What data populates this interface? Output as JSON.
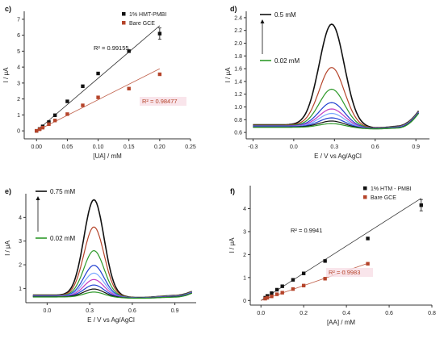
{
  "colors": {
    "black": "#111111",
    "red": "#b5442a",
    "green": "#2e9a2a",
    "blue": "#1f3fd0",
    "magenta": "#c23ec2",
    "lightblue": "#7aa8ff",
    "axis": "#333333",
    "highlight": "#f7dfe6"
  },
  "chart_data": [
    {
      "panel_label": "c)",
      "type": "scatter",
      "xlabel": "[UA] / mM",
      "ylabel": "I / μA",
      "xlim": [
        -0.02,
        0.25
      ],
      "ylim": [
        -0.5,
        7.5
      ],
      "xticks": [
        "0.00",
        "0.05",
        "0.10",
        "0.15",
        "0.20",
        "0.25"
      ],
      "xtick_values": [
        0.0,
        0.05,
        0.1,
        0.15,
        0.2,
        0.25
      ],
      "yticks": [
        "0",
        "1",
        "2",
        "3",
        "4",
        "5",
        "6",
        "7"
      ],
      "ytick_values": [
        0,
        1,
        2,
        3,
        4,
        5,
        6,
        7
      ],
      "legend_position": "top-right",
      "series": [
        {
          "name": "1% HMT-PMBI",
          "marker": "square",
          "color": "#111111",
          "x": [
            0.0,
            0.005,
            0.01,
            0.02,
            0.03,
            0.05,
            0.075,
            0.1,
            0.15,
            0.2
          ],
          "y": [
            0.0,
            0.12,
            0.28,
            0.55,
            0.98,
            1.85,
            2.8,
            3.6,
            5.0,
            6.1
          ],
          "fit": [
            [
              0.0,
              0.0
            ],
            [
              0.2,
              6.6
            ]
          ],
          "annotation": "R² = 0.99155"
        },
        {
          "name": "Bare GCE",
          "marker": "square",
          "color": "#b5442a",
          "x": [
            0.0,
            0.005,
            0.01,
            0.02,
            0.03,
            0.05,
            0.075,
            0.1,
            0.15,
            0.2
          ],
          "y": [
            0.0,
            0.1,
            0.2,
            0.42,
            0.65,
            1.05,
            1.6,
            2.1,
            2.65,
            3.55
          ],
          "fit": [
            [
              0.0,
              0.0
            ],
            [
              0.2,
              3.9
            ]
          ],
          "annotation": "R² = 0.98477"
        }
      ]
    },
    {
      "panel_label": "d)",
      "type": "line",
      "xlabel": "E / V vs Ag/AgCl",
      "ylabel": "I / μA",
      "xlim": [
        -0.35,
        1.0
      ],
      "ylim": [
        0.5,
        2.5
      ],
      "xticks": [
        "-0.3",
        "0.0",
        "0.3",
        "0.6",
        "0.9"
      ],
      "xtick_values": [
        -0.3,
        0.0,
        0.3,
        0.6,
        0.9
      ],
      "yticks": [
        "0.6",
        "0.8",
        "1.0",
        "1.2",
        "1.4",
        "1.6",
        "1.8",
        "2.0",
        "2.2",
        "2.4"
      ],
      "ytick_values": [
        0.6,
        0.8,
        1.0,
        1.2,
        1.4,
        1.6,
        1.8,
        2.0,
        2.2,
        2.4
      ],
      "annotations": {
        "top": "0.5 mM",
        "bottom": "0.02 mM"
      },
      "peak_position": 0.28,
      "series": [
        {
          "color": "#111111",
          "peak": 2.3
        },
        {
          "color": "#b5442a",
          "peak": 1.62
        },
        {
          "color": "#2e9a2a",
          "peak": 1.28
        },
        {
          "color": "#1f3fd0",
          "peak": 1.07
        },
        {
          "color": "#c23ec2",
          "peak": 0.97
        },
        {
          "color": "#7aa8ff",
          "peak": 0.9
        },
        {
          "color": "#1f3fd0",
          "peak": 0.83
        },
        {
          "color": "#111111",
          "peak": 0.78
        },
        {
          "color": "#2e9a2a",
          "peak": 0.74
        }
      ]
    },
    {
      "panel_label": "e)",
      "type": "line",
      "xlabel": "E / V vs Ag/AgCl",
      "ylabel": "I / μA",
      "xlim": [
        -0.15,
        1.05
      ],
      "ylim": [
        0.4,
        5.0
      ],
      "xticks": [
        "0.0",
        "0.3",
        "0.6",
        "0.9"
      ],
      "xtick_values": [
        0.0,
        0.3,
        0.6,
        0.9
      ],
      "yticks": [
        "1",
        "2",
        "3",
        "4"
      ],
      "ytick_values": [
        1,
        2,
        3,
        4
      ],
      "annotations": {
        "top": "0.75 mM",
        "bottom": "0.02 mM"
      },
      "peak_position": 0.33,
      "series": [
        {
          "color": "#111111",
          "peak": 4.75
        },
        {
          "color": "#b5442a",
          "peak": 3.6
        },
        {
          "color": "#2e9a2a",
          "peak": 2.6
        },
        {
          "color": "#1f3fd0",
          "peak": 1.98
        },
        {
          "color": "#7aa8ff",
          "peak": 1.65
        },
        {
          "color": "#c23ec2",
          "peak": 1.38
        },
        {
          "color": "#1f3fd0",
          "peak": 1.15
        },
        {
          "color": "#111111",
          "peak": 0.98
        },
        {
          "color": "#2e9a2a",
          "peak": 0.85
        }
      ]
    },
    {
      "panel_label": "f)",
      "type": "scatter",
      "xlabel": "[AA] / mM",
      "ylabel": "I / μA",
      "xlim": [
        -0.05,
        0.8
      ],
      "ylim": [
        -0.2,
        5.0
      ],
      "xticks": [
        "0.0",
        "0.2",
        "0.4",
        "0.6",
        "0.8"
      ],
      "xtick_values": [
        0.0,
        0.2,
        0.4,
        0.6,
        0.8
      ],
      "yticks": [
        "0",
        "1",
        "2",
        "3",
        "4"
      ],
      "ytick_values": [
        0,
        1,
        2,
        3,
        4
      ],
      "legend_position": "top-right",
      "series": [
        {
          "name": "1% HTM - PMBI",
          "marker": "square",
          "color": "#111111",
          "x": [
            0.02,
            0.03,
            0.05,
            0.075,
            0.1,
            0.15,
            0.2,
            0.3,
            0.5,
            0.75
          ],
          "y": [
            0.12,
            0.2,
            0.32,
            0.47,
            0.62,
            0.9,
            1.18,
            1.72,
            2.7,
            4.15
          ],
          "fit": [
            [
              0.0,
              0.0
            ],
            [
              0.75,
              4.45
            ]
          ],
          "annotation": "R² = 0.9941"
        },
        {
          "name": "Bare GCE",
          "marker": "square",
          "color": "#b5442a",
          "x": [
            0.02,
            0.03,
            0.05,
            0.075,
            0.1,
            0.15,
            0.2,
            0.3,
            0.5
          ],
          "y": [
            0.08,
            0.12,
            0.18,
            0.27,
            0.34,
            0.5,
            0.65,
            0.95,
            1.6
          ],
          "fit": [
            [
              0.0,
              0.0
            ],
            [
              0.5,
              1.62
            ]
          ],
          "annotation": "R² = 0.9983"
        }
      ]
    }
  ]
}
